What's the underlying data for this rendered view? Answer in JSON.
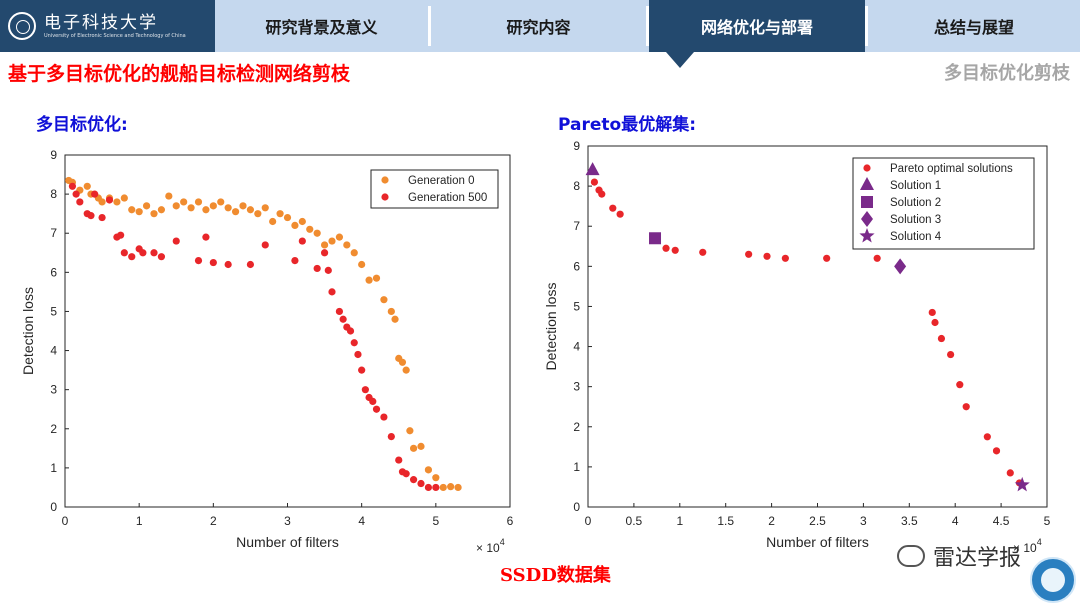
{
  "header": {
    "logo_cn": "电子科技大学",
    "logo_en": "University of Electronic Science and Technology of China",
    "tabs": [
      {
        "label": "研究背景及意义",
        "active": false
      },
      {
        "label": "研究内容",
        "active": false
      },
      {
        "label": "网络优化与部署",
        "active": true
      },
      {
        "label": "总结与展望",
        "active": false
      }
    ]
  },
  "title": "基于多目标优化的舰船目标检测网络剪枝",
  "subtitle_right": "多目标优化剪枝",
  "left_section_label": "多目标优化:",
  "right_section_label": "Pareto最优解集:",
  "caption": "SSDD数据集",
  "watermark": "雷达学报",
  "colors": {
    "header_dark": "#23496e",
    "header_light": "#c5d8ee",
    "title_red": "#ff0000",
    "section_blue": "#1010d8",
    "orange": "#f08c30",
    "red": "#e8262a",
    "purple": "#7a2a8a"
  },
  "chart_data": [
    {
      "type": "scatter",
      "xlabel": "Number of filters",
      "ylabel": "Detection loss",
      "x_multiplier_label": "× 10^4",
      "xlim": [
        0,
        6
      ],
      "ylim": [
        0,
        9
      ],
      "xticks": [
        "0",
        "1",
        "2",
        "3",
        "4",
        "5",
        "6"
      ],
      "yticks": [
        "0",
        "1",
        "2",
        "3",
        "4",
        "5",
        "6",
        "7",
        "8",
        "9"
      ],
      "legend_position": "top-right",
      "series": [
        {
          "name": "Generation 0",
          "color": "#f08c30",
          "points": [
            [
              0.05,
              8.35
            ],
            [
              0.1,
              8.3
            ],
            [
              0.2,
              8.1
            ],
            [
              0.3,
              8.2
            ],
            [
              0.35,
              8.0
            ],
            [
              0.45,
              7.9
            ],
            [
              0.5,
              7.8
            ],
            [
              0.6,
              7.9
            ],
            [
              0.7,
              7.8
            ],
            [
              0.8,
              7.9
            ],
            [
              0.9,
              7.6
            ],
            [
              1.0,
              7.55
            ],
            [
              1.1,
              7.7
            ],
            [
              1.2,
              7.5
            ],
            [
              1.3,
              7.6
            ],
            [
              1.4,
              7.95
            ],
            [
              1.5,
              7.7
            ],
            [
              1.6,
              7.8
            ],
            [
              1.7,
              7.65
            ],
            [
              1.8,
              7.8
            ],
            [
              1.9,
              7.6
            ],
            [
              2.0,
              7.7
            ],
            [
              2.1,
              7.8
            ],
            [
              2.2,
              7.65
            ],
            [
              2.3,
              7.55
            ],
            [
              2.4,
              7.7
            ],
            [
              2.5,
              7.6
            ],
            [
              2.6,
              7.5
            ],
            [
              2.7,
              7.65
            ],
            [
              2.8,
              7.3
            ],
            [
              2.9,
              7.5
            ],
            [
              3.0,
              7.4
            ],
            [
              3.1,
              7.2
            ],
            [
              3.2,
              7.3
            ],
            [
              3.3,
              7.1
            ],
            [
              3.4,
              7.0
            ],
            [
              3.5,
              6.7
            ],
            [
              3.6,
              6.8
            ],
            [
              3.7,
              6.9
            ],
            [
              3.8,
              6.7
            ],
            [
              3.9,
              6.5
            ],
            [
              4.0,
              6.2
            ],
            [
              4.1,
              5.8
            ],
            [
              4.2,
              5.85
            ],
            [
              4.3,
              5.3
            ],
            [
              4.4,
              5.0
            ],
            [
              4.45,
              4.8
            ],
            [
              4.5,
              3.8
            ],
            [
              4.55,
              3.7
            ],
            [
              4.6,
              3.5
            ],
            [
              4.65,
              1.95
            ],
            [
              4.7,
              1.5
            ],
            [
              4.8,
              1.55
            ],
            [
              4.9,
              0.95
            ],
            [
              5.0,
              0.75
            ],
            [
              5.1,
              0.5
            ],
            [
              5.2,
              0.52
            ],
            [
              5.3,
              0.5
            ]
          ]
        },
        {
          "name": "Generation 500",
          "color": "#e8262a",
          "points": [
            [
              0.1,
              8.2
            ],
            [
              0.15,
              8.0
            ],
            [
              0.2,
              7.8
            ],
            [
              0.3,
              7.5
            ],
            [
              0.35,
              7.45
            ],
            [
              0.4,
              8.0
            ],
            [
              0.5,
              7.4
            ],
            [
              0.6,
              7.85
            ],
            [
              0.7,
              6.9
            ],
            [
              0.75,
              6.95
            ],
            [
              0.8,
              6.5
            ],
            [
              0.9,
              6.4
            ],
            [
              1.0,
              6.6
            ],
            [
              1.05,
              6.5
            ],
            [
              1.2,
              6.5
            ],
            [
              1.3,
              6.4
            ],
            [
              1.5,
              6.8
            ],
            [
              1.8,
              6.3
            ],
            [
              1.9,
              6.9
            ],
            [
              2.0,
              6.25
            ],
            [
              2.2,
              6.2
            ],
            [
              2.5,
              6.2
            ],
            [
              2.7,
              6.7
            ],
            [
              3.1,
              6.3
            ],
            [
              3.2,
              6.8
            ],
            [
              3.4,
              6.1
            ],
            [
              3.5,
              6.5
            ],
            [
              3.55,
              6.05
            ],
            [
              3.6,
              5.5
            ],
            [
              3.7,
              5.0
            ],
            [
              3.75,
              4.8
            ],
            [
              3.8,
              4.6
            ],
            [
              3.85,
              4.5
            ],
            [
              3.9,
              4.2
            ],
            [
              3.95,
              3.9
            ],
            [
              4.0,
              3.5
            ],
            [
              4.05,
              3.0
            ],
            [
              4.1,
              2.8
            ],
            [
              4.15,
              2.7
            ],
            [
              4.2,
              2.5
            ],
            [
              4.3,
              2.3
            ],
            [
              4.4,
              1.8
            ],
            [
              4.5,
              1.2
            ],
            [
              4.55,
              0.9
            ],
            [
              4.6,
              0.85
            ],
            [
              4.7,
              0.7
            ],
            [
              4.8,
              0.6
            ],
            [
              4.9,
              0.5
            ],
            [
              5.0,
              0.5
            ]
          ]
        }
      ]
    },
    {
      "type": "scatter",
      "xlabel": "Number of filters",
      "ylabel": "Detection loss",
      "x_multiplier_label": "× 10^4",
      "xlim": [
        0,
        5
      ],
      "ylim": [
        0,
        9
      ],
      "xticks": [
        "0",
        "0.5",
        "1",
        "1.5",
        "2",
        "2.5",
        "3",
        "3.5",
        "4",
        "4.5",
        "5"
      ],
      "yticks": [
        "0",
        "1",
        "2",
        "3",
        "4",
        "5",
        "6",
        "7",
        "8",
        "9"
      ],
      "legend_position": "top-right",
      "series": [
        {
          "name": "Pareto optimal solutions",
          "color": "#e8262a",
          "points": [
            [
              0.07,
              8.1
            ],
            [
              0.12,
              7.9
            ],
            [
              0.15,
              7.8
            ],
            [
              0.27,
              7.45
            ],
            [
              0.35,
              7.3
            ],
            [
              0.85,
              6.45
            ],
            [
              0.95,
              6.4
            ],
            [
              1.25,
              6.35
            ],
            [
              1.75,
              6.3
            ],
            [
              1.95,
              6.25
            ],
            [
              2.15,
              6.2
            ],
            [
              2.6,
              6.2
            ],
            [
              3.15,
              6.2
            ],
            [
              3.75,
              4.85
            ],
            [
              3.78,
              4.6
            ],
            [
              3.85,
              4.2
            ],
            [
              3.95,
              3.8
            ],
            [
              4.05,
              3.05
            ],
            [
              4.12,
              2.5
            ],
            [
              4.35,
              1.75
            ],
            [
              4.45,
              1.4
            ],
            [
              4.6,
              0.85
            ],
            [
              4.7,
              0.6
            ]
          ]
        },
        {
          "name": "Solution 1",
          "color": "#7a2a8a",
          "marker": "triangle",
          "points": [
            [
              0.05,
              8.4
            ]
          ]
        },
        {
          "name": "Solution 2",
          "color": "#7a2a8a",
          "marker": "square",
          "points": [
            [
              0.73,
              6.7
            ]
          ]
        },
        {
          "name": "Solution 3",
          "color": "#7a2a8a",
          "marker": "diamond",
          "points": [
            [
              3.4,
              6.0
            ]
          ]
        },
        {
          "name": "Solution 4",
          "color": "#7a2a8a",
          "marker": "star",
          "points": [
            [
              4.73,
              0.55
            ]
          ]
        }
      ]
    }
  ]
}
